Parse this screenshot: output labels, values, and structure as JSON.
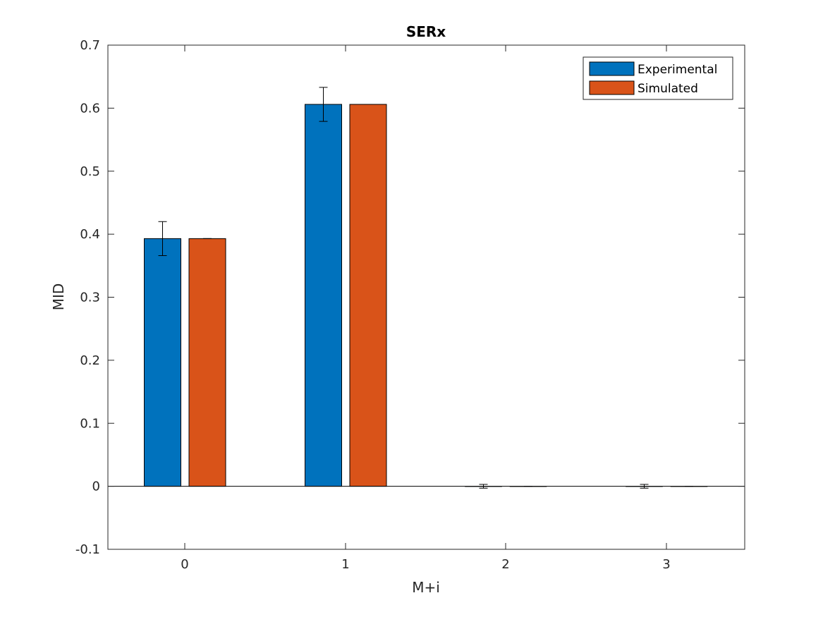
{
  "chart_data": {
    "type": "bar",
    "title": "SERx",
    "xlabel": "M+i",
    "ylabel": "MID",
    "categories": [
      "0",
      "1",
      "2",
      "3"
    ],
    "ylim": [
      -0.1,
      0.7
    ],
    "yticks": [
      "-0.1",
      "0",
      "0.1",
      "0.2",
      "0.3",
      "0.4",
      "0.5",
      "0.6",
      "0.7"
    ],
    "grid": false,
    "legend_position": "top-right",
    "series": [
      {
        "name": "Experimental",
        "color": "#0072BD",
        "values": [
          0.393,
          0.606,
          0.0,
          0.0
        ],
        "errors": [
          0.027,
          0.027,
          0.003,
          0.003
        ]
      },
      {
        "name": "Simulated",
        "color": "#D95319",
        "values": [
          0.393,
          0.606,
          0.0,
          0.0
        ],
        "errors": [
          0.0,
          0.0,
          0.0,
          0.0
        ]
      }
    ]
  }
}
